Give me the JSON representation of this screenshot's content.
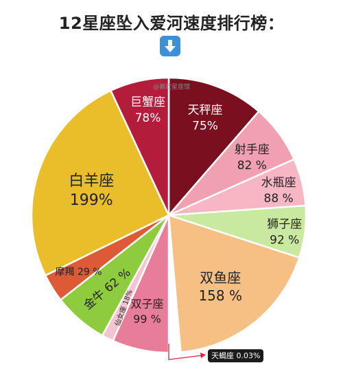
{
  "header": {
    "title": "12星座坠入爱河速度排行榜：",
    "arrow_icon": "down-arrow-icon"
  },
  "watermark": "@慕欣星座馆",
  "chart_data": {
    "type": "pie",
    "title": "12星座坠入爱河速度排行榜：",
    "series": [
      {
        "name": "天秤座",
        "value_label": "75%",
        "value": 75,
        "color": "#7a0f1f"
      },
      {
        "name": "射手座",
        "value_label": "82 %",
        "value": 82,
        "color": "#f0a0b0"
      },
      {
        "name": "水瓶座",
        "value_label": "88 %",
        "value": 88,
        "color": "#f6b6c4"
      },
      {
        "name": "狮子座",
        "value_label": "92 %",
        "value": 92,
        "color": "#c9e8a0"
      },
      {
        "name": "双鱼座",
        "value_label": "158 %",
        "value": 158,
        "color": "#f6bf84"
      },
      {
        "name": "天蝎座",
        "value_label": "0.03%",
        "value": 0.03,
        "color": "#ffffff"
      },
      {
        "name": "双子座",
        "value_label": "99 %",
        "value": 99,
        "color": "#e77d99"
      },
      {
        "name": "仙女座",
        "value_label": "18%",
        "value": 18,
        "color": "#f4c4d0"
      },
      {
        "name": "金牛",
        "value_label": "62 %",
        "value": 62,
        "color": "#8ecb3e"
      },
      {
        "name": "摩羯",
        "value_label": "29 %",
        "value": 29,
        "color": "#dc5a36"
      },
      {
        "name": "白羊座",
        "value_label": "199%",
        "value": 199,
        "color": "#e9be2a"
      },
      {
        "name": "巨蟹座",
        "value_label": "78%",
        "value": 78,
        "color": "#b41c3c"
      }
    ],
    "callout": "天蝎座 0.03%"
  }
}
